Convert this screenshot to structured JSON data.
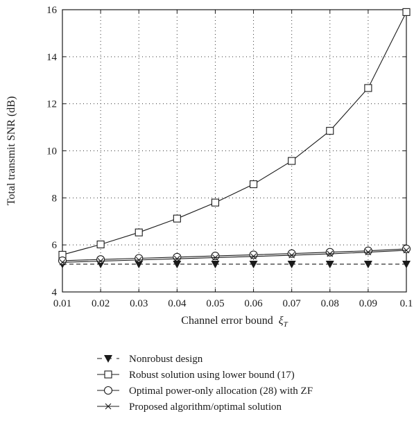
{
  "chart_data": {
    "type": "line",
    "title": "",
    "xlabel": "Channel error bound",
    "xlabel_symbol": "ξ",
    "xlabel_subscript": "T",
    "ylabel": "Total transmit SNR (dB)",
    "xlim": [
      0.01,
      0.1
    ],
    "ylim": [
      4,
      16
    ],
    "x_ticks": [
      "0.01",
      "0.02",
      "0.03",
      "0.04",
      "0.05",
      "0.06",
      "0.07",
      "0.08",
      "0.09",
      "0.1"
    ],
    "y_ticks": [
      "4",
      "6",
      "8",
      "10",
      "12",
      "14",
      "16"
    ],
    "grid": true,
    "legend_position": "below plot",
    "x": [
      0.01,
      0.02,
      0.03,
      0.04,
      0.05,
      0.06,
      0.07,
      0.08,
      0.09,
      0.1
    ],
    "series": [
      {
        "name": "Nonrobust design",
        "marker": "filled-triangle-down",
        "line": "dashed",
        "values": [
          5.18,
          5.18,
          5.18,
          5.18,
          5.18,
          5.18,
          5.18,
          5.18,
          5.18,
          5.18
        ]
      },
      {
        "name": "Robust solution using lower bound (17)",
        "marker": "square",
        "line": "solid",
        "values": [
          5.58,
          6.02,
          6.53,
          7.12,
          7.8,
          8.58,
          9.57,
          10.85,
          12.67,
          15.9
        ]
      },
      {
        "name": "Optimal power-only allocation (28) with ZF",
        "marker": "circle",
        "line": "solid",
        "values": [
          5.33,
          5.38,
          5.43,
          5.48,
          5.53,
          5.58,
          5.63,
          5.69,
          5.75,
          5.83
        ]
      },
      {
        "name": "Proposed algorithm/optimal solution",
        "marker": "x",
        "line": "solid",
        "values": [
          5.26,
          5.31,
          5.36,
          5.41,
          5.46,
          5.51,
          5.56,
          5.62,
          5.69,
          5.77
        ]
      }
    ]
  }
}
